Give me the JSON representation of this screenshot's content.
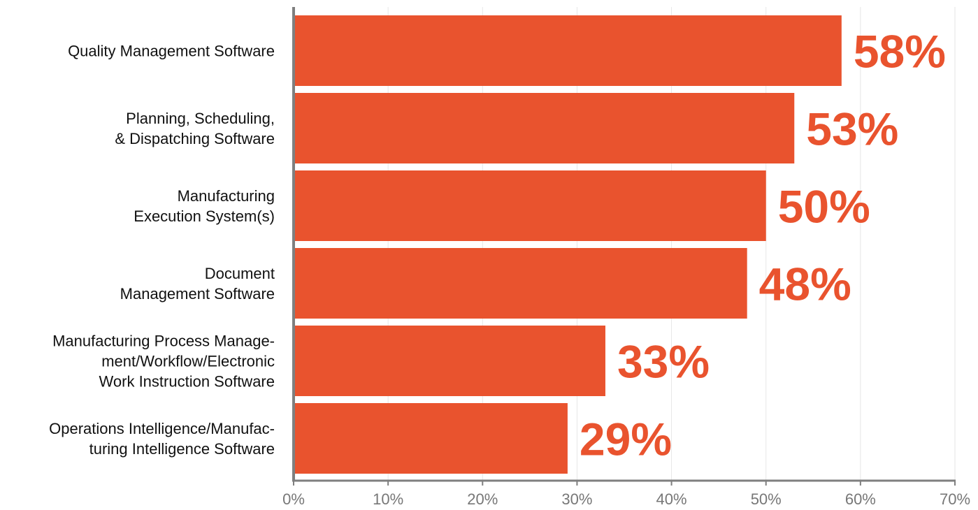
{
  "colors": {
    "bar": "#E9532E",
    "value_label": "#E9532E",
    "axis": "#7F7F7F",
    "grid": "#E6E6E6",
    "category_text": "#111111",
    "tick_text": "#777777"
  },
  "chart_data": {
    "type": "bar",
    "orientation": "horizontal",
    "categories": [
      [
        "Quality Management Software"
      ],
      [
        "Planning, Scheduling,",
        "& Dispatching Software"
      ],
      [
        "Manufacturing",
        "Execution System(s)"
      ],
      [
        "Document",
        "Management Software"
      ],
      [
        "Manufacturing Process Manage-",
        "ment/Workflow/Electronic",
        "Work Instruction Software"
      ],
      [
        "Operations Intelligence/Manufac-",
        "turing Intelligence Software"
      ]
    ],
    "values": [
      58,
      53,
      50,
      48,
      33,
      29
    ],
    "value_labels": [
      "58%",
      "53%",
      "50%",
      "48%",
      "33%",
      "29%"
    ],
    "xlim": [
      0,
      70
    ],
    "x_ticks": [
      0,
      10,
      20,
      30,
      40,
      50,
      60,
      70
    ],
    "x_tick_labels": [
      "0%",
      "10%",
      "20%",
      "30%",
      "40%",
      "50%",
      "60%",
      "70%"
    ],
    "grid": true,
    "legend": "none",
    "title": "",
    "xlabel": "",
    "ylabel": ""
  }
}
